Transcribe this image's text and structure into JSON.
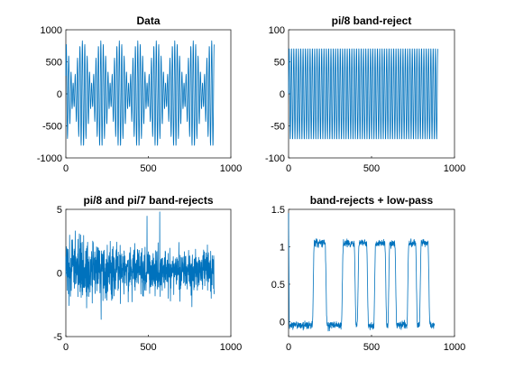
{
  "figure": {
    "background": "#ffffff",
    "line_color": "#0072BD",
    "axis_color": "#262626"
  },
  "chart_data": [
    {
      "type": "line",
      "title": "Data",
      "xlim": [
        0,
        1000
      ],
      "ylim": [
        -1000,
        1000
      ],
      "xticks": [
        0,
        500,
        1000
      ],
      "yticks": [
        -1000,
        -500,
        0,
        500,
        1000
      ],
      "xticklabels": [
        "0",
        "500",
        "1000"
      ],
      "yticklabels": [
        "-1000",
        "-500",
        "0",
        "500",
        "1000"
      ],
      "signal": {
        "kind": "two-tone",
        "n": 900,
        "amplitudes": [
          330,
          500
        ],
        "freqs": [
          0.3927,
          0.4488
        ]
      }
    },
    {
      "type": "line",
      "title": "pi/8 band-reject",
      "xlim": [
        0,
        1000
      ],
      "ylim": [
        -100,
        100
      ],
      "xticks": [
        0,
        500,
        1000
      ],
      "yticks": [
        -100,
        -50,
        0,
        50,
        100
      ],
      "xticklabels": [
        "0",
        "500",
        "1000"
      ],
      "yticklabels": [
        "-100",
        "-50",
        "0",
        "50",
        "100"
      ],
      "signal": {
        "kind": "tone",
        "n": 900,
        "amplitude": 72,
        "freq": 0.4488
      }
    },
    {
      "type": "line",
      "title": "pi/8 and pi/7 band-rejects",
      "xlim": [
        0,
        1000
      ],
      "ylim": [
        -5,
        5
      ],
      "xticks": [
        0,
        500,
        1000
      ],
      "yticks": [
        -5,
        0,
        5
      ],
      "xticklabels": [
        "0",
        "500",
        "1000"
      ],
      "yticklabels": [
        "-5",
        "0",
        "5"
      ],
      "signal": {
        "kind": "noise",
        "n": 900,
        "sigma": 1.0,
        "mean": 0.2
      }
    },
    {
      "type": "line",
      "title": "band-rejects + low-pass",
      "xlim": [
        0,
        1000
      ],
      "ylim": [
        -0.2,
        1.5
      ],
      "xticks": [
        0,
        500,
        1000
      ],
      "yticks": [
        0,
        0.5,
        1,
        1.5
      ],
      "xticklabels": [
        "0",
        "500",
        "1000"
      ],
      "yticklabels": [
        "0",
        "0.5",
        "1",
        "1.5"
      ],
      "signal": {
        "kind": "pulses",
        "n": 880,
        "low": -0.05,
        "high": 1.05,
        "pulses": [
          [
            155,
            220
          ],
          [
            330,
            395
          ],
          [
            425,
            470
          ],
          [
            525,
            580
          ],
          [
            610,
            640
          ],
          [
            725,
            765
          ],
          [
            800,
            840
          ]
        ]
      }
    }
  ]
}
